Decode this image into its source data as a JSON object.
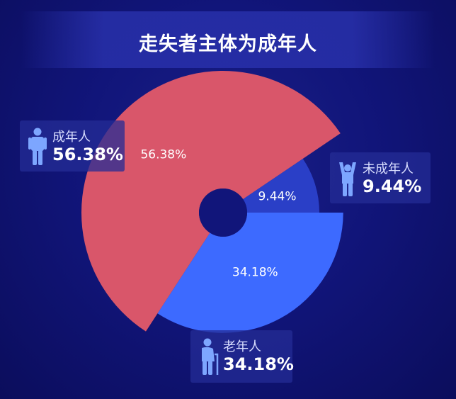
{
  "header": {
    "title": "走失者主体为成年人"
  },
  "colors": {
    "background": "#11157a",
    "adult": "#d9566a",
    "elderly": "#3d6aff",
    "minor": "#2a3fc7",
    "icon": "#7da6ff"
  },
  "legend": [
    {
      "key": "adult",
      "label": "成年人",
      "value": "56.38%",
      "icon": "person-icon"
    },
    {
      "key": "minor",
      "label": "未成年人",
      "value": "9.44%",
      "icon": "child-arms-up-icon"
    },
    {
      "key": "elderly",
      "label": "老年人",
      "value": "34.18%",
      "icon": "elderly-with-cane-icon"
    }
  ],
  "chart_data": {
    "type": "pie",
    "title": "走失者主体为成年人",
    "style": "rose-donut",
    "slices": [
      {
        "label": "成年人",
        "value": 56.38,
        "data_label": "56.38%",
        "color": "#d9566a"
      },
      {
        "label": "未成年人",
        "value": 9.44,
        "data_label": "9.44%",
        "color": "#2a3fc7"
      },
      {
        "label": "老年人",
        "value": 34.18,
        "data_label": "34.18%",
        "color": "#3d6aff"
      }
    ]
  }
}
